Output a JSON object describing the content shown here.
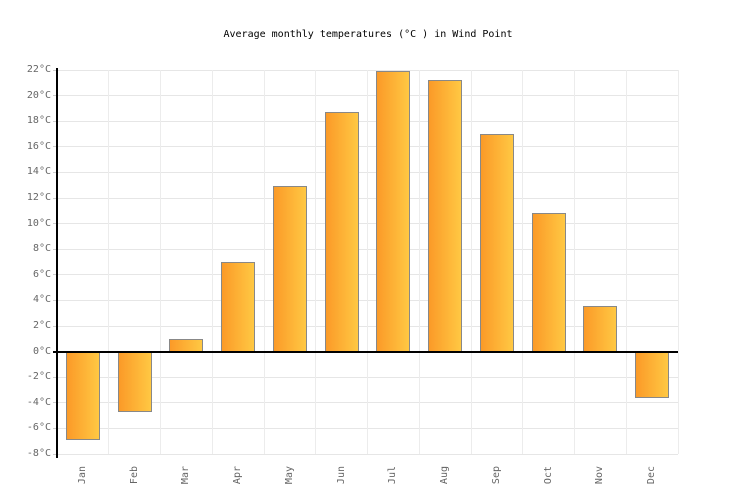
{
  "chart_data": {
    "type": "bar",
    "title": "Average monthly temperatures (°C ) in Wind Point",
    "categories": [
      "Jan",
      "Feb",
      "Mar",
      "Apr",
      "May",
      "Jun",
      "Jul",
      "Aug",
      "Sep",
      "Oct",
      "Nov",
      "Dec"
    ],
    "values": [
      -6.9,
      -4.7,
      1,
      7,
      12.9,
      18.7,
      21.9,
      21.2,
      17,
      10.8,
      3.6,
      -3.6
    ],
    "unit": "°C",
    "xlabel": "",
    "ylabel": "",
    "ylim": [
      -8,
      22
    ],
    "ytick_step": 2,
    "grid": true,
    "legend": false
  },
  "colors": {
    "bar_gradient_left": "#fb9a28",
    "bar_gradient_right": "#ffc843",
    "bar_border": "#888888",
    "gridline_horizontal": "#e6e6e6",
    "gridline_vertical": "#ececec",
    "axis": "#000000",
    "zero_line": "#000000",
    "tick": "#cccccc",
    "label": "#666666",
    "title": "#000000",
    "background": "#ffffff"
  }
}
